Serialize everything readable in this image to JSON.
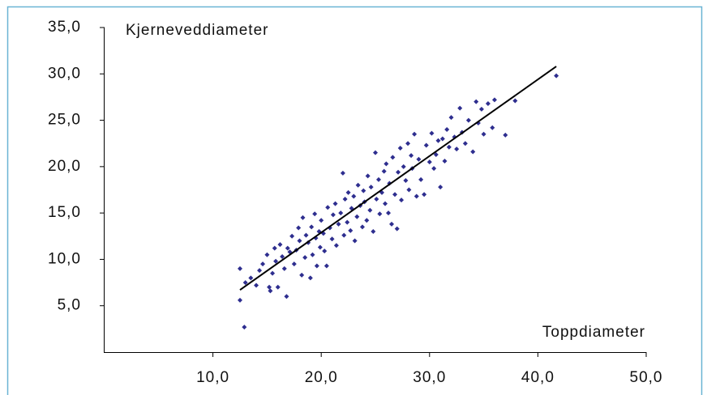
{
  "chart_data": {
    "type": "scatter",
    "y_label": "Kjerneveddiameter",
    "x_label": "Toppdiameter",
    "color": "#2e2e8f",
    "xlim": [
      0,
      50
    ],
    "ylim": [
      0,
      35
    ],
    "xticks": [
      {
        "value": 10,
        "label": "10,0"
      },
      {
        "value": 20,
        "label": "20,0"
      },
      {
        "value": 30,
        "label": "30,0"
      },
      {
        "value": 40,
        "label": "40,0"
      },
      {
        "value": 50,
        "label": "50,0"
      }
    ],
    "yticks": [
      {
        "value": 5,
        "label": "5,0"
      },
      {
        "value": 10,
        "label": "10,0"
      },
      {
        "value": 15,
        "label": "15,0"
      },
      {
        "value": 20,
        "label": "20,0"
      },
      {
        "value": 25,
        "label": "25,0"
      },
      {
        "value": 30,
        "label": "30,0"
      },
      {
        "value": 35,
        "label": "35,0"
      }
    ],
    "x": [
      12.5,
      12.5,
      12.9,
      13.0,
      13.5,
      14.0,
      14.3,
      14.6,
      15.0,
      15.2,
      15.3,
      15.5,
      15.7,
      15.8,
      16.0,
      16.2,
      16.4,
      16.6,
      16.8,
      16.9,
      17.1,
      17.3,
      17.5,
      17.7,
      17.9,
      18.0,
      18.2,
      18.3,
      18.5,
      18.6,
      18.8,
      19.0,
      19.1,
      19.2,
      19.4,
      19.5,
      19.6,
      19.8,
      19.9,
      20.0,
      20.2,
      20.3,
      20.5,
      20.6,
      20.8,
      21.0,
      21.1,
      21.3,
      21.4,
      21.6,
      21.8,
      22.0,
      22.1,
      22.2,
      22.4,
      22.5,
      22.7,
      22.8,
      23.0,
      23.1,
      23.3,
      23.4,
      23.6,
      23.8,
      23.9,
      24.0,
      24.2,
      24.3,
      24.5,
      24.6,
      24.8,
      25.0,
      25.1,
      25.3,
      25.4,
      25.6,
      25.8,
      25.9,
      26.0,
      26.2,
      26.3,
      26.5,
      26.6,
      26.8,
      27.0,
      27.1,
      27.3,
      27.4,
      27.6,
      27.8,
      28.0,
      28.1,
      28.3,
      28.4,
      28.6,
      28.8,
      29.0,
      29.2,
      29.5,
      29.7,
      30.0,
      30.2,
      30.4,
      30.6,
      30.8,
      31.0,
      31.2,
      31.4,
      31.6,
      31.8,
      32.0,
      32.3,
      32.5,
      32.8,
      33.0,
      33.3,
      33.6,
      34.0,
      34.3,
      34.5,
      34.8,
      35.0,
      35.4,
      35.8,
      36.0,
      37.0,
      37.9,
      41.7
    ],
    "y": [
      9.0,
      5.6,
      2.7,
      7.5,
      8.0,
      7.2,
      8.8,
      9.5,
      10.5,
      7.0,
      6.6,
      8.5,
      11.2,
      9.8,
      7.0,
      11.6,
      10.3,
      9.0,
      6.0,
      11.2,
      10.8,
      12.5,
      9.5,
      11.0,
      13.4,
      12.0,
      8.3,
      14.5,
      10.2,
      12.6,
      11.8,
      8.0,
      13.5,
      10.5,
      14.9,
      12.3,
      9.3,
      13.0,
      11.3,
      14.2,
      12.8,
      10.9,
      9.3,
      15.6,
      13.4,
      12.2,
      14.8,
      16.0,
      11.5,
      13.8,
      15.0,
      19.3,
      12.6,
      16.5,
      14.0,
      17.2,
      13.1,
      15.5,
      16.8,
      12.0,
      14.6,
      18.0,
      15.8,
      13.5,
      17.4,
      16.2,
      14.2,
      19.0,
      15.3,
      17.8,
      13.0,
      21.5,
      16.5,
      18.6,
      14.9,
      17.2,
      19.5,
      16.0,
      20.3,
      15.0,
      18.2,
      13.8,
      21.0,
      17.0,
      13.3,
      19.4,
      22.0,
      16.4,
      20.0,
      18.5,
      22.5,
      17.5,
      21.2,
      19.8,
      23.5,
      16.8,
      20.8,
      18.6,
      17.0,
      22.3,
      20.5,
      23.6,
      19.8,
      21.3,
      22.8,
      17.8,
      23.0,
      20.6,
      24.0,
      22.1,
      25.3,
      23.2,
      21.9,
      26.3,
      23.7,
      22.5,
      25.0,
      21.6,
      27.0,
      24.7,
      26.2,
      23.5,
      26.8,
      24.2,
      27.2,
      23.4,
      27.1,
      29.8
    ],
    "trendline": {
      "x": [
        12.5,
        41.7
      ],
      "y": [
        6.7,
        30.8
      ],
      "color": "#000000"
    }
  }
}
